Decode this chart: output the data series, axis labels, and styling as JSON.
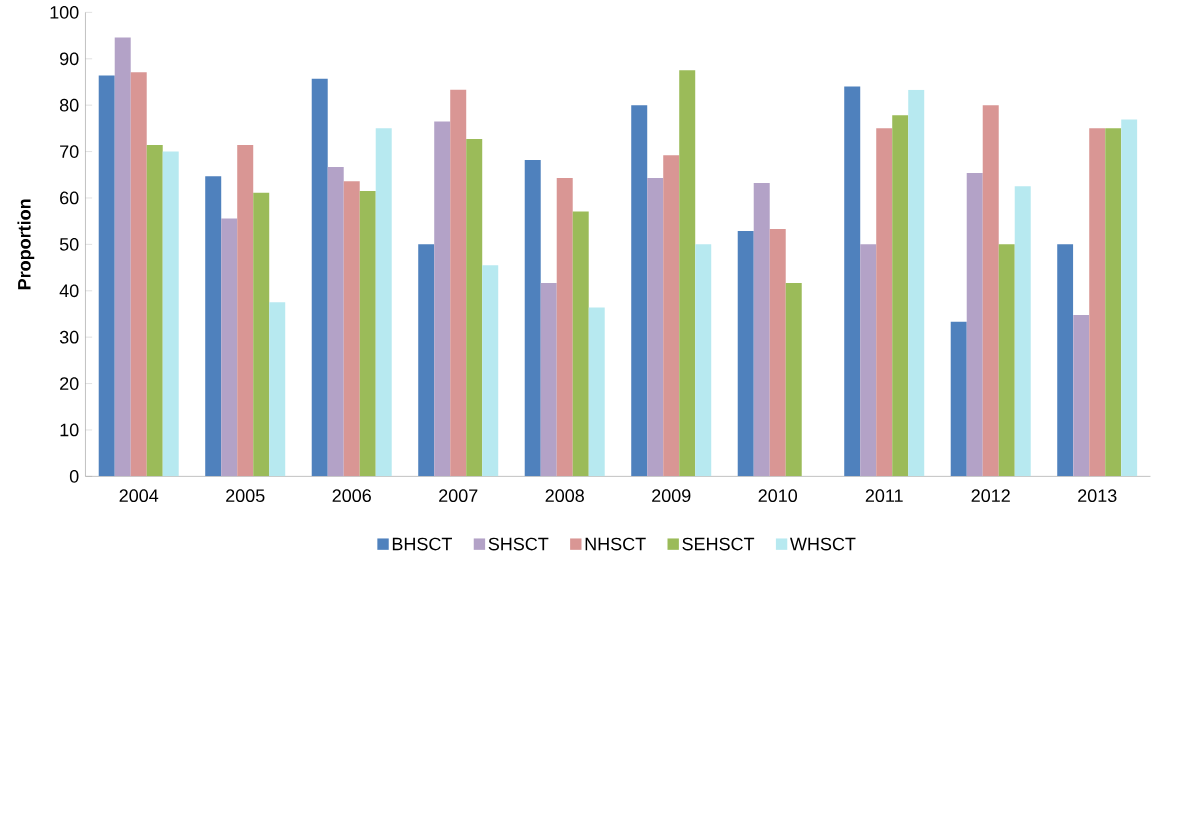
{
  "chart_data": {
    "type": "bar",
    "ylabel": "Proportion",
    "categories": [
      "2004",
      "2005",
      "2006",
      "2007",
      "2008",
      "2009",
      "2010",
      "2011",
      "2012",
      "2013"
    ],
    "series": [
      {
        "name": "BHSCT",
        "color": "#4f81bd",
        "values": [
          86.4,
          64.7,
          85.7,
          50,
          68.2,
          80,
          52.9,
          84,
          33.3,
          50
        ]
      },
      {
        "name": "SHSCT",
        "color": "#b3a2c7",
        "values": [
          94.6,
          55.6,
          66.7,
          76.5,
          41.7,
          64.3,
          63.2,
          50,
          65.4,
          34.8
        ]
      },
      {
        "name": "NHSCT",
        "color": "#d99694",
        "values": [
          87.1,
          71.4,
          63.6,
          83.3,
          64.3,
          69.2,
          53.3,
          75,
          80,
          75
        ]
      },
      {
        "name": "SEHSCT",
        "color": "#9bbb59",
        "values": [
          71.4,
          61.1,
          61.5,
          72.7,
          57.1,
          87.5,
          41.7,
          77.8,
          50,
          75
        ]
      },
      {
        "name": "WHSCT",
        "color": "#b7e9f0",
        "values": [
          70,
          37.5,
          75,
          45.5,
          36.4,
          50,
          null,
          83.3,
          62.5,
          76.9
        ]
      }
    ],
    "ylim": [
      0,
      100
    ],
    "yticks": [
      0,
      10,
      20,
      30,
      40,
      50,
      60,
      70,
      80,
      90,
      100
    ],
    "legend": "bottom"
  }
}
